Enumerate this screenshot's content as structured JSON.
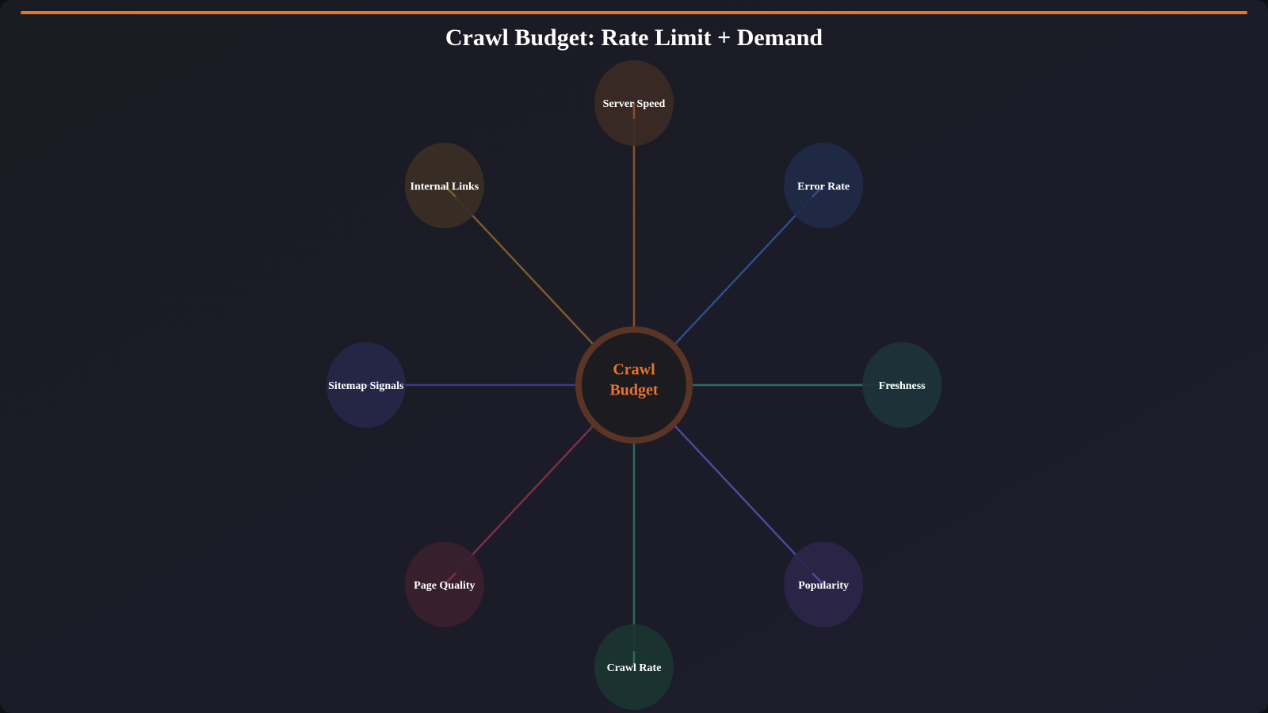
{
  "title": "Crawl Budget: Rate Limit + Demand",
  "center": {
    "lines": [
      "Crawl",
      "Budget"
    ]
  },
  "nodes": [
    {
      "label": "Server Speed"
    },
    {
      "label": "Error Rate"
    },
    {
      "label": "Freshness"
    },
    {
      "label": "Popularity"
    },
    {
      "label": "Crawl Rate"
    },
    {
      "label": "Page Quality"
    },
    {
      "label": "Sitemap Signals"
    },
    {
      "label": "Internal Links"
    }
  ]
}
